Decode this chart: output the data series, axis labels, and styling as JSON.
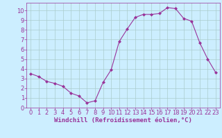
{
  "x": [
    0,
    1,
    2,
    3,
    4,
    5,
    6,
    7,
    8,
    9,
    10,
    11,
    12,
    13,
    14,
    15,
    16,
    17,
    18,
    19,
    20,
    21,
    22,
    23
  ],
  "y": [
    3.5,
    3.2,
    2.7,
    2.5,
    2.2,
    1.5,
    1.2,
    0.5,
    0.7,
    2.6,
    3.9,
    6.8,
    8.1,
    9.3,
    9.6,
    9.6,
    9.7,
    10.3,
    10.2,
    9.2,
    8.9,
    6.7,
    5.0,
    3.6
  ],
  "line_color": "#993399",
  "marker": "D",
  "marker_size": 2,
  "bg_color": "#cceeff",
  "grid_color": "#aacccc",
  "xlabel": "Windchill (Refroidissement éolien,°C)",
  "xlabel_color": "#993399",
  "xlabel_fontsize": 6.5,
  "tick_color": "#993399",
  "tick_fontsize": 6,
  "ylim": [
    0,
    10.8
  ],
  "xlim": [
    -0.5,
    23.5
  ],
  "yticks": [
    0,
    1,
    2,
    3,
    4,
    5,
    6,
    7,
    8,
    9,
    10
  ],
  "xticks": [
    0,
    1,
    2,
    3,
    4,
    5,
    6,
    7,
    8,
    9,
    10,
    11,
    12,
    13,
    14,
    15,
    16,
    17,
    18,
    19,
    20,
    21,
    22,
    23
  ]
}
